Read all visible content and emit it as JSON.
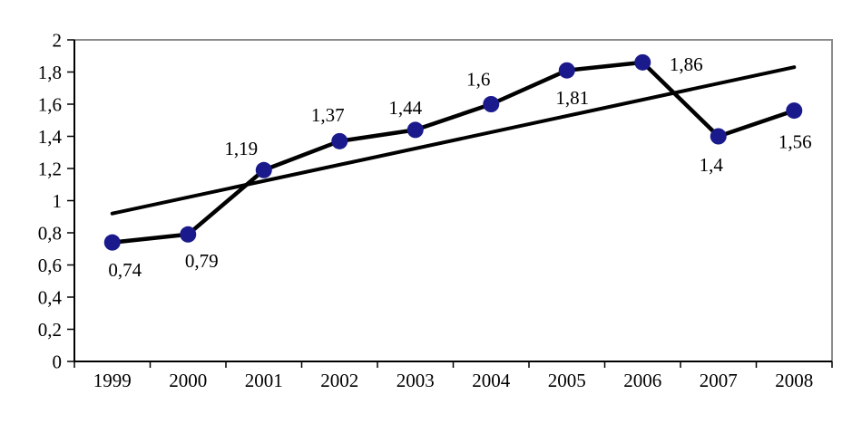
{
  "chart_data": {
    "type": "line",
    "title": "",
    "xlabel": "",
    "ylabel": "",
    "categories": [
      "1999",
      "2000",
      "2001",
      "2002",
      "2003",
      "2004",
      "2005",
      "2006",
      "2007",
      "2008"
    ],
    "series": [
      {
        "name": "main-series",
        "type": "line-with-markers",
        "values": [
          0.74,
          0.79,
          1.19,
          1.37,
          1.44,
          1.6,
          1.81,
          1.86,
          1.4,
          1.56
        ],
        "point_labels": [
          "0,74",
          "0,79",
          "1,19",
          "1,37",
          "1,44",
          "1,6",
          "1,81",
          "1,86",
          "1,4",
          "1,56"
        ],
        "line_color": "#000000",
        "marker_color": "#1A1A8C",
        "label_offsets": [
          [
            14,
            30
          ],
          [
            15,
            29
          ],
          [
            -25,
            -24
          ],
          [
            -13,
            -29
          ],
          [
            -11,
            -25
          ],
          [
            -14,
            -28
          ],
          [
            6,
            30
          ],
          [
            48,
            2
          ],
          [
            -8,
            31
          ],
          [
            1,
            34
          ]
        ]
      },
      {
        "name": "linear-trendline",
        "type": "trendline",
        "endpoints": [
          0.92,
          1.83
        ],
        "line_color": "#000000"
      }
    ],
    "ylim": [
      0,
      2
    ],
    "y_tick_labels": [
      "0",
      "0,2",
      "0,4",
      "0,6",
      "0,8",
      "1",
      "1,2",
      "1,4",
      "1,6",
      "1,8",
      "2"
    ],
    "grid": false,
    "legend": "none",
    "axis_color": "#000000",
    "plot_border_color": "#8C8C8C",
    "background_color": "#FFFFFF"
  }
}
